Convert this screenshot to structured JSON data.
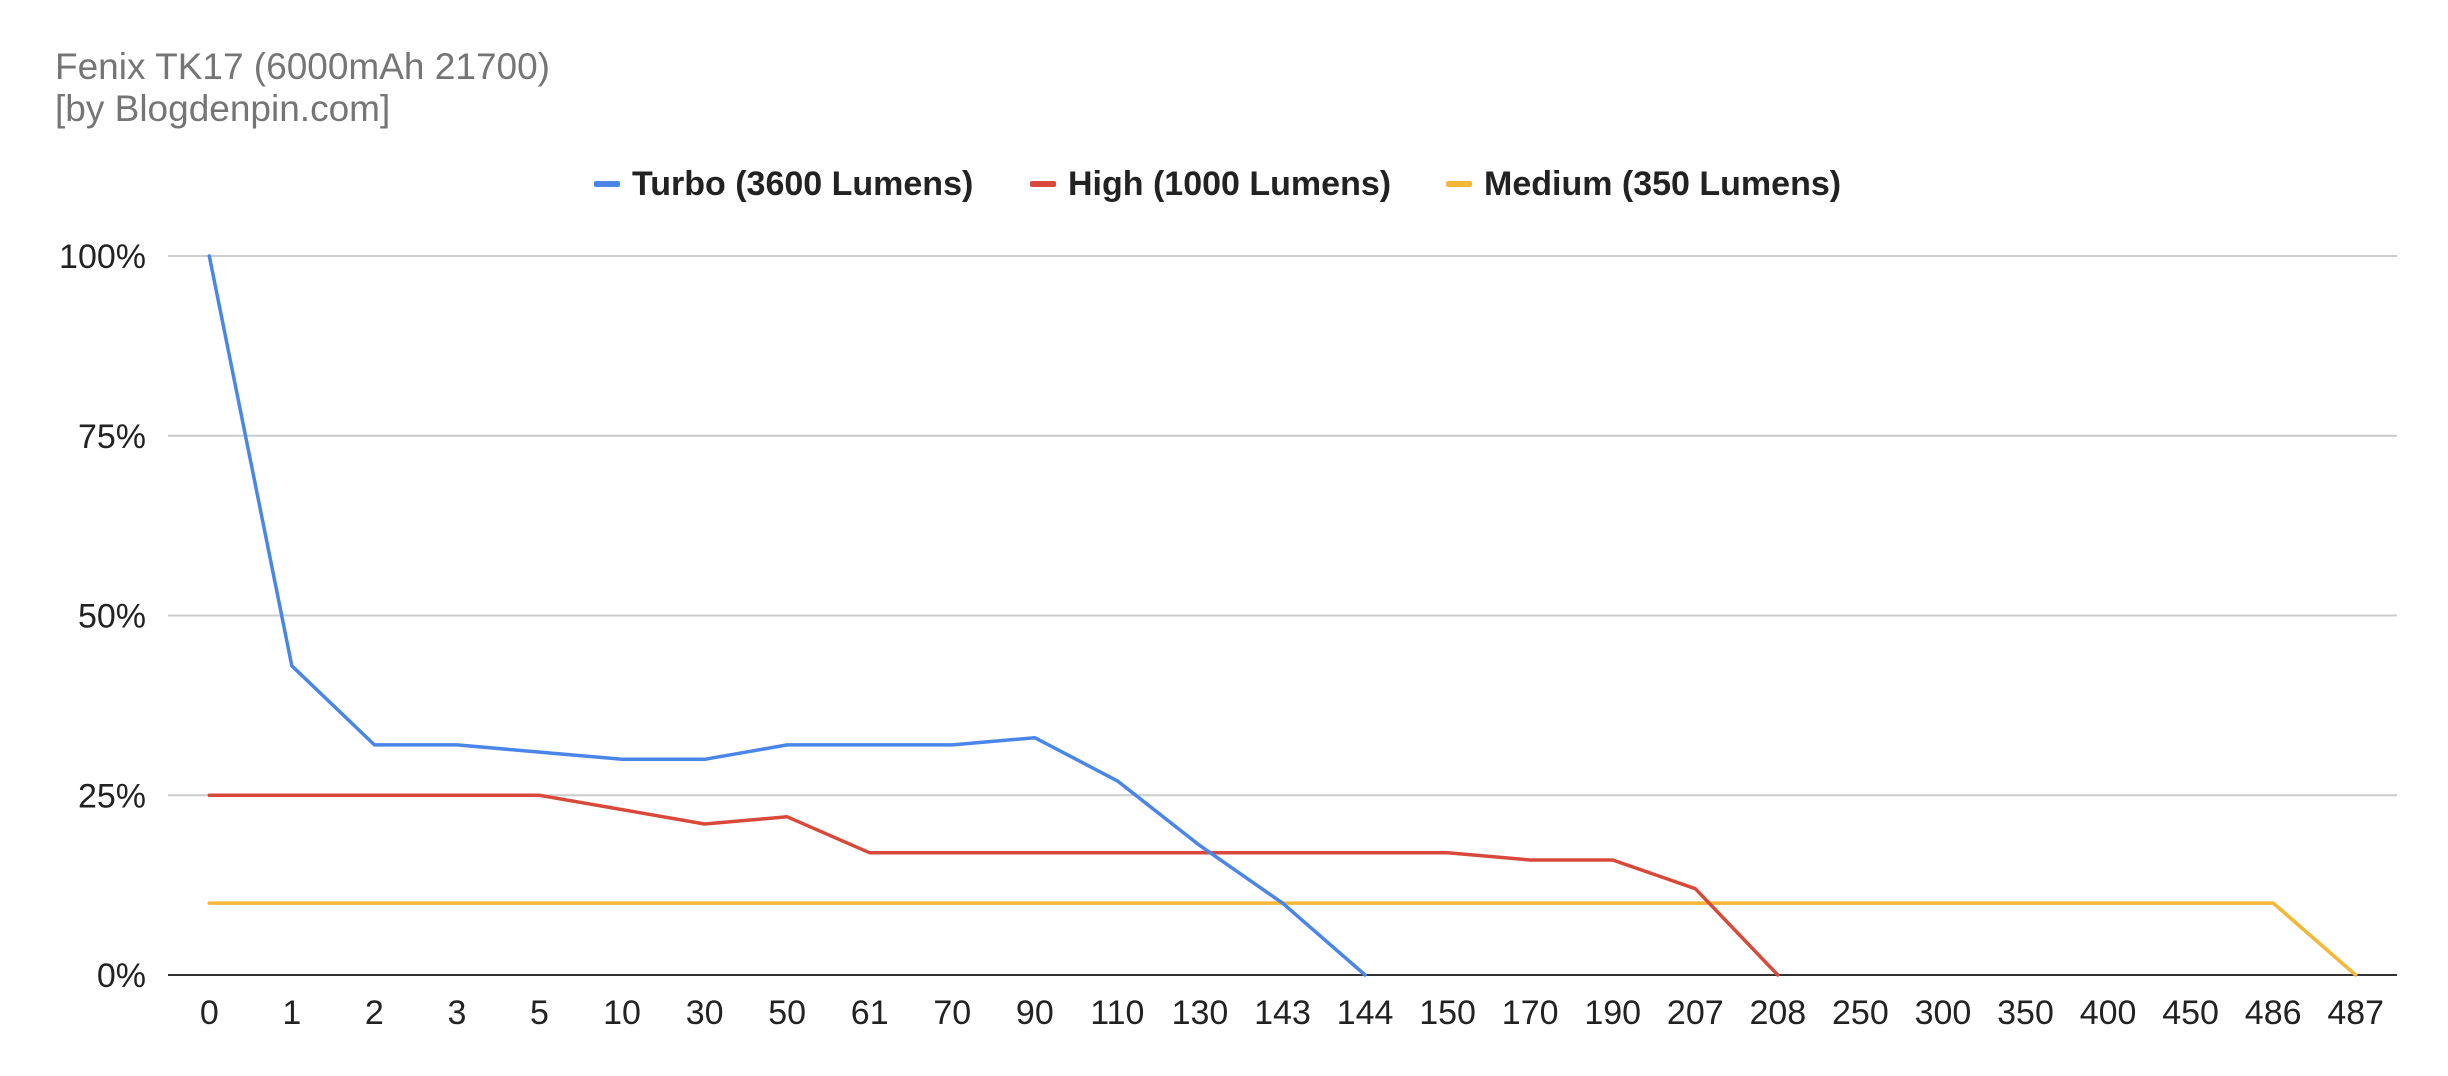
{
  "title": "Fenix TK17 (6000mAh 21700)",
  "subtitle": "[by Blogdenpin.com]",
  "chart_data": {
    "type": "line",
    "title": "Fenix TK17 (6000mAh 21700)",
    "subtitle": "[by Blogdenpin.com]",
    "xlabel": "",
    "ylabel": "",
    "categories": [
      "0",
      "1",
      "2",
      "3",
      "5",
      "10",
      "30",
      "50",
      "61",
      "70",
      "90",
      "110",
      "130",
      "143",
      "144",
      "150",
      "170",
      "190",
      "207",
      "208",
      "250",
      "300",
      "350",
      "400",
      "450",
      "486",
      "487"
    ],
    "y_ticks": [
      "0%",
      "25%",
      "50%",
      "75%",
      "100%"
    ],
    "ylim": [
      0,
      100
    ],
    "grid": true,
    "legend_position": "top",
    "series": [
      {
        "name": "Turbo (3600 Lumens)",
        "color": "#4a86e8",
        "values": [
          100,
          43,
          32,
          32,
          31,
          30,
          30,
          32,
          32,
          32,
          33,
          27,
          18,
          10,
          0,
          null,
          null,
          null,
          null,
          null,
          null,
          null,
          null,
          null,
          null,
          null,
          null
        ]
      },
      {
        "name": "High (1000 Lumens)",
        "color": "#d9493a",
        "values": [
          25,
          25,
          25,
          25,
          25,
          23,
          21,
          22,
          17,
          17,
          17,
          17,
          17,
          17,
          17,
          17,
          16,
          16,
          12,
          0,
          null,
          null,
          null,
          null,
          null,
          null,
          null
        ]
      },
      {
        "name": "Medium (350 Lumens)",
        "color": "#f4b737",
        "values": [
          10,
          10,
          10,
          10,
          10,
          10,
          10,
          10,
          10,
          10,
          10,
          10,
          10,
          10,
          10,
          10,
          10,
          10,
          10,
          10,
          10,
          10,
          10,
          10,
          10,
          10,
          0
        ]
      }
    ]
  }
}
